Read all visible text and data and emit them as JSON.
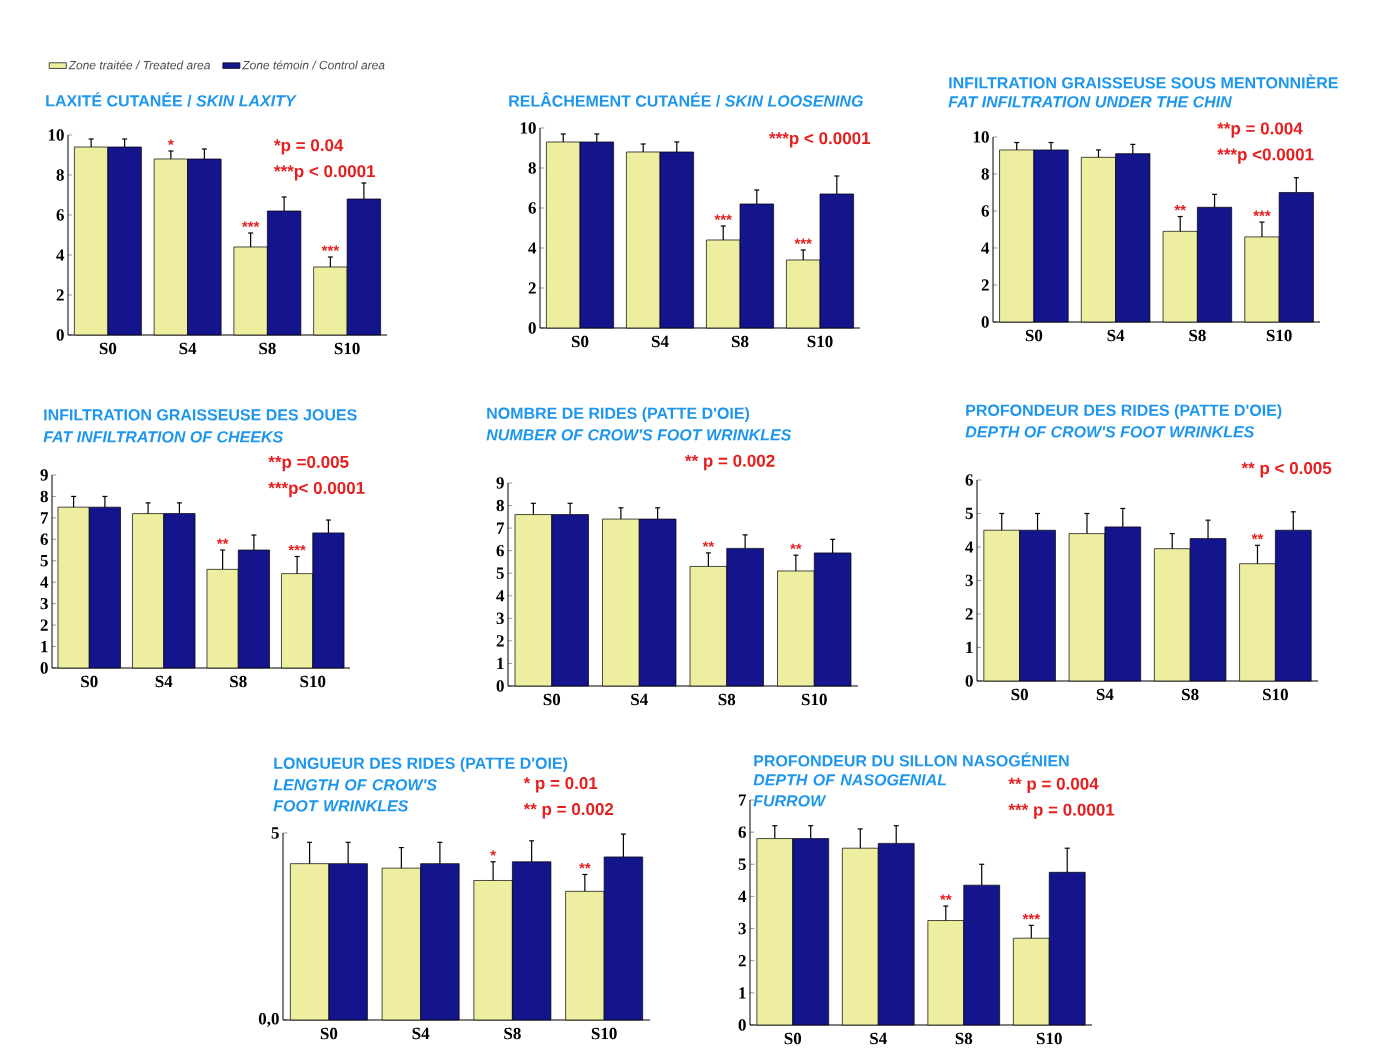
{
  "chart_data": [
    {
      "type": "bar",
      "title": "LAXITÉ CUTANÉE / *SKIN LAXITY*",
      "categories": [
        "S0",
        "S4",
        "S8",
        "S10"
      ],
      "ylim": [
        0,
        10
      ],
      "yticks": [
        0,
        2,
        4,
        6,
        8,
        10
      ],
      "legend": "top left",
      "series": [
        {
          "name": "Zone traitée / Treated area",
          "color": "#eeeea0",
          "values": [
            9.4,
            8.8,
            4.4,
            3.4
          ],
          "errors": [
            [
              9.4,
              9.8
            ],
            [
              8.8,
              9.2
            ],
            [
              4.4,
              5.1
            ],
            [
              3.4,
              3.9
            ]
          ]
        },
        {
          "name": "Zone témoin / Control area",
          "color": "#14148c",
          "values": [
            9.4,
            8.8,
            6.2,
            6.8
          ],
          "errors": [
            [
              9.4,
              9.8
            ],
            [
              8.8,
              9.3
            ],
            [
              6.2,
              6.9
            ],
            [
              6.8,
              7.6
            ]
          ]
        }
      ],
      "annotations": [
        "*p = 0.04",
        "***p < 0.0001",
        {
          "text": "*",
          "x": "S4",
          "y": 8.8
        },
        {
          "text": "***",
          "x": "S8",
          "y": 4.4
        },
        {
          "text": "***",
          "x": "S10",
          "y": 3.4
        }
      ]
    },
    {
      "type": "bar",
      "title": "RELÂCHEMENT CUTANÉE / *SKIN LOOSENING*",
      "categories": [
        "S0",
        "S4",
        "S8",
        "S10"
      ],
      "ylim": [
        0,
        10
      ],
      "yticks": [
        0,
        2,
        4,
        6,
        8,
        10
      ],
      "series": [
        {
          "color": "#eeeea0",
          "values": [
            9.3,
            8.8,
            4.4,
            3.4
          ],
          "errors": [
            [
              9.3,
              9.7
            ],
            [
              8.8,
              9.2
            ],
            [
              4.4,
              5.1
            ],
            [
              3.4,
              3.9
            ]
          ]
        },
        {
          "color": "#14148c",
          "values": [
            9.3,
            8.8,
            6.2,
            6.7
          ],
          "errors": [
            [
              9.3,
              9.7
            ],
            [
              8.8,
              9.3
            ],
            [
              6.2,
              6.9
            ],
            [
              6.7,
              7.6
            ]
          ]
        }
      ],
      "annotations": [
        "***p < 0.0001",
        {
          "text": "***",
          "x": "S8",
          "y": 4.4
        },
        {
          "text": "***",
          "x": "S10",
          "y": 3.4
        }
      ]
    },
    {
      "type": "bar",
      "title": "INFILTRATION GRAISSEUSE SOUS MENTONNIÈRE",
      "subtitle": "FAT INFILTRATION UNDER THE CHIN",
      "categories": [
        "S0",
        "S4",
        "S8",
        "S10"
      ],
      "ylim": [
        0,
        10
      ],
      "yticks": [
        0,
        2,
        4,
        6,
        8,
        10
      ],
      "series": [
        {
          "color": "#eeeea0",
          "values": [
            9.3,
            8.9,
            4.9,
            4.6
          ],
          "errors": [
            [
              9.3,
              9.7
            ],
            [
              8.9,
              9.3
            ],
            [
              4.9,
              5.7
            ],
            [
              4.6,
              5.4
            ]
          ]
        },
        {
          "color": "#14148c",
          "values": [
            9.3,
            9.1,
            6.2,
            7.0
          ],
          "errors": [
            [
              9.3,
              9.7
            ],
            [
              9.1,
              9.6
            ],
            [
              6.2,
              6.9
            ],
            [
              7.0,
              7.8
            ]
          ]
        }
      ],
      "annotations": [
        "**p = 0.004",
        "***p <0.0001",
        {
          "text": "**",
          "x": "S8",
          "y": 4.9
        },
        {
          "text": "***",
          "x": "S10",
          "y": 4.6
        }
      ]
    },
    {
      "type": "bar",
      "title": "INFILTRATION GRAISSEUSE DES JOUES",
      "subtitle": "FAT INFILTRATION OF CHEEKS",
      "categories": [
        "S0",
        "S4",
        "S8",
        "S10"
      ],
      "ylim": [
        0,
        9
      ],
      "yticks": [
        0,
        1,
        2,
        3,
        4,
        5,
        6,
        7,
        8,
        9
      ],
      "series": [
        {
          "color": "#eeeea0",
          "values": [
            7.5,
            7.2,
            4.6,
            4.4
          ],
          "errors": [
            [
              7.5,
              8.0
            ],
            [
              7.2,
              7.7
            ],
            [
              4.6,
              5.5
            ],
            [
              4.4,
              5.2
            ]
          ]
        },
        {
          "color": "#14148c",
          "values": [
            7.5,
            7.2,
            5.5,
            6.3
          ],
          "errors": [
            [
              7.5,
              8.0
            ],
            [
              7.2,
              7.7
            ],
            [
              5.5,
              6.2
            ],
            [
              6.3,
              6.9
            ]
          ]
        }
      ],
      "annotations": [
        "**p =0.005",
        "***p< 0.0001",
        {
          "text": "**",
          "x": "S8",
          "y": 4.6
        },
        {
          "text": "***",
          "x": "S10",
          "y": 4.4
        }
      ]
    },
    {
      "type": "bar",
      "title": "NOMBRE DE RIDES (PATTE D'OIE)",
      "subtitle": "NUMBER OF CROW'S FOOT WRINKLES",
      "categories": [
        "S0",
        "S4",
        "S8",
        "S10"
      ],
      "ylim": [
        0,
        9
      ],
      "yticks": [
        0,
        1,
        2,
        3,
        4,
        5,
        6,
        7,
        8,
        9
      ],
      "series": [
        {
          "color": "#eeeea0",
          "values": [
            7.6,
            7.4,
            5.3,
            5.1
          ],
          "errors": [
            [
              7.6,
              8.1
            ],
            [
              7.4,
              7.9
            ],
            [
              5.3,
              5.9
            ],
            [
              5.1,
              5.8
            ]
          ]
        },
        {
          "color": "#14148c",
          "values": [
            7.6,
            7.4,
            6.1,
            5.9
          ],
          "errors": [
            [
              7.6,
              8.1
            ],
            [
              7.4,
              7.9
            ],
            [
              6.1,
              6.7
            ],
            [
              5.9,
              6.5
            ]
          ]
        }
      ],
      "annotations": [
        "** p = 0.002",
        {
          "text": "**",
          "x": "S8",
          "y": 5.3
        },
        {
          "text": "**",
          "x": "S10",
          "y": 5.1
        }
      ]
    },
    {
      "type": "bar",
      "title": "PROFONDEUR DES RIDES (PATTE D'OIE)",
      "subtitle": "DEPTH OF CROW'S FOOT WRINKLES",
      "categories": [
        "S0",
        "S4",
        "S8",
        "S10"
      ],
      "ylim": [
        0,
        6
      ],
      "yticks": [
        0,
        1,
        2,
        3,
        4,
        5,
        6
      ],
      "series": [
        {
          "color": "#eeeea0",
          "values": [
            4.5,
            4.4,
            3.95,
            3.5
          ],
          "errors": [
            [
              4.5,
              5.0
            ],
            [
              4.4,
              5.0
            ],
            [
              3.95,
              4.4
            ],
            [
              3.5,
              4.05
            ]
          ]
        },
        {
          "color": "#14148c",
          "values": [
            4.5,
            4.6,
            4.25,
            4.5
          ],
          "errors": [
            [
              4.5,
              5.0
            ],
            [
              4.6,
              5.15
            ],
            [
              4.25,
              4.8
            ],
            [
              4.5,
              5.05
            ]
          ]
        }
      ],
      "annotations": [
        "** p < 0.005",
        {
          "text": "**",
          "x": "S10",
          "y": 3.5
        }
      ]
    },
    {
      "type": "bar",
      "title": "LONGUEUR DES RIDES (PATTE D'OIE)",
      "subtitle": "LENGTH OF CROW'S FOOT WRINKLES",
      "categories": [
        "S0",
        "S4",
        "S8",
        "S10"
      ],
      "ylim": [
        0,
        5
      ],
      "yticks": [
        {
          "value": 0,
          "label": "0,0"
        },
        5
      ],
      "series": [
        {
          "color": "#eeeea0",
          "values": [
            4.18,
            4.06,
            3.73,
            3.44
          ],
          "errors": [
            [
              4.18,
              4.75
            ],
            [
              4.06,
              4.61
            ],
            [
              3.73,
              4.23
            ],
            [
              3.44,
              3.89
            ]
          ]
        },
        {
          "color": "#14148c",
          "values": [
            4.18,
            4.18,
            4.23,
            4.36
          ],
          "errors": [
            [
              4.18,
              4.75
            ],
            [
              4.18,
              4.75
            ],
            [
              4.23,
              4.79
            ],
            [
              4.36,
              4.97
            ]
          ]
        }
      ],
      "annotations": [
        "* p = 0.01",
        "** p = 0.002",
        {
          "text": "*",
          "x": "S8",
          "y": 3.73
        },
        {
          "text": "**",
          "x": "S10",
          "y": 3.44
        }
      ]
    },
    {
      "type": "bar",
      "title": "PROFONDEUR DU SILLON NASOGÉNIEN",
      "subtitle": "DEPTH OF NASOGENIAL FURROW",
      "categories": [
        "S0",
        "S4",
        "S8",
        "S10"
      ],
      "ylim": [
        0,
        7
      ],
      "yticks": [
        0,
        1,
        2,
        3,
        4,
        5,
        6,
        7
      ],
      "series": [
        {
          "color": "#eeeea0",
          "values": [
            5.8,
            5.5,
            3.25,
            2.7
          ],
          "errors": [
            [
              5.8,
              6.2
            ],
            [
              5.5,
              6.1
            ],
            [
              3.25,
              3.7
            ],
            [
              2.7,
              3.1
            ]
          ]
        },
        {
          "color": "#14148c",
          "values": [
            5.8,
            5.65,
            4.35,
            4.75
          ],
          "errors": [
            [
              5.8,
              6.2
            ],
            [
              5.65,
              6.2
            ],
            [
              4.35,
              5.0
            ],
            [
              4.75,
              5.5
            ]
          ]
        }
      ],
      "annotations": [
        "** p = 0.004",
        "*** p = 0.0001",
        {
          "text": "**",
          "x": "S8",
          "y": 3.25
        },
        {
          "text": "***",
          "x": "S10",
          "y": 2.7
        }
      ]
    }
  ]
}
